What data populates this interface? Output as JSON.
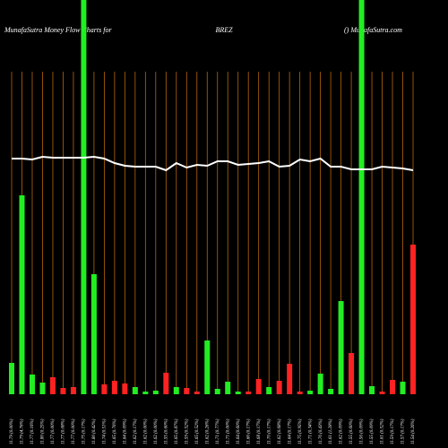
{
  "chart_data": {
    "type": "bar",
    "title": "MunafaSutra  Money  Flow  Charts for",
    "subtitle": "BREZ",
    "source": "() MunafaSutra.com",
    "categories": [
      "11.79 (0.00%)",
      "11.79 (4.76%)",
      "11.77 (0.16%)",
      "11.80 (0.25%)",
      "11.77 (0.00%)",
      "11.77 (0.08%)",
      "11.77 (0.00%)",
      "11.75 (0.17%)",
      "11.80 (0.42%)",
      "11.74 (0.51%)",
      "11.65 (0.76%)",
      "11.64 (0.09%)",
      "11.62 (0.17%)",
      "11.62 (0.00%)",
      "11.62 (0.00%)",
      "11.55 (0.60%)",
      "11.65 (0.87%)",
      "11.59 (0.52%)",
      "11.65 (0.52%)",
      "11.62 (0.26%)",
      "11.71 (0.77%)",
      "11.71 (0.00%)",
      "11.64 (0.60%)",
      "11.66 (0.17%)",
      "11.68 (0.17%)",
      "11.70 (0.17%)",
      "11.62 (0.68%)",
      "11.64 (0.17%)",
      "11.75 (0.95%)",
      "11.71 (0.34%)",
      "11.76 (0.43%)",
      "11.61 (1.28%)",
      "11.62 (0.09%)",
      "11.55 (0.60%)",
      "11.56 (0.09%)",
      "11.55 (0.09%)",
      "11.61 (0.52%)",
      "11.59 (0.17%)",
      "11.57 (0.17%)",
      "11.54 (0.26%)"
    ],
    "series": [
      {
        "values": [
          35,
          222,
          22,
          13,
          19,
          7,
          8,
          440,
          134,
          11,
          15,
          12,
          8,
          3,
          4,
          24,
          8,
          7,
          3,
          60,
          6,
          14,
          3,
          3,
          17,
          8,
          15,
          34,
          3,
          4,
          23,
          6,
          104,
          46,
          440,
          9,
          3,
          16,
          14,
          167
        ],
        "colors": [
          "#22ee22",
          "#22ee22",
          "#22ee22",
          "#22ee22",
          "#ff2222",
          "#ff2222",
          "#ff2222",
          "#22ee22",
          "#22ee22",
          "#ff2222",
          "#ff2222",
          "#ff2222",
          "#22ee22",
          "#22ee22",
          "#22ee22",
          "#ff2222",
          "#22ee22",
          "#ff2222",
          "#ff2222",
          "#22ee22",
          "#22ee22",
          "#22ee22",
          "#22ee22",
          "#ff2222",
          "#ff2222",
          "#22ee22",
          "#ff2222",
          "#ff2222",
          "#ff2222",
          "#22ee22",
          "#22ee22",
          "#22ee22",
          "#22ee22",
          "#ff2222",
          "#22ee22",
          "#22ee22",
          "#ff2222",
          "#ff2222",
          "#22ee22",
          "#ff2222"
        ]
      },
      {
        "type": "line",
        "color": "#ffffff",
        "values": [
          263,
          263,
          262,
          265,
          264,
          264,
          264,
          264,
          265,
          263,
          258,
          255,
          254,
          254,
          254,
          250,
          258,
          253,
          256,
          255,
          260,
          260,
          256,
          257,
          258,
          260,
          254,
          255,
          262,
          260,
          263,
          254,
          254,
          251,
          251,
          251,
          254,
          253,
          252,
          250
        ]
      }
    ],
    "ylim": [
      0,
      440
    ],
    "grid_color": "#b8660b"
  }
}
